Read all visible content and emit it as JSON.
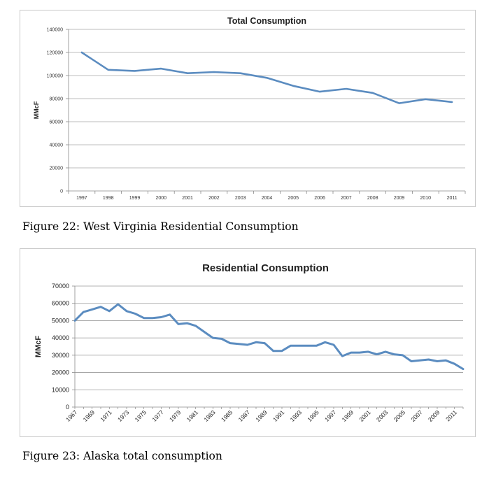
{
  "figures": [
    {
      "caption": "Figure 22: West Virginia Residential Consumption",
      "chart_data": {
        "type": "line",
        "title": "Total Consumption",
        "xlabel": "",
        "ylabel": "MMcF",
        "ylim": [
          0,
          140000
        ],
        "yticks": [
          "0",
          "20000",
          "40000",
          "60000",
          "80000",
          "100000",
          "120000",
          "140000"
        ],
        "categories": [
          "1997",
          "1998",
          "1999",
          "2000",
          "2001",
          "2002",
          "2003",
          "2004",
          "2005",
          "2006",
          "2007",
          "2008",
          "2009",
          "2010",
          "2011"
        ],
        "series": [
          {
            "values": [
              120000,
              105000,
              104000,
              106000,
              102000,
              103000,
              102000,
              98000,
              91000,
              86000,
              88500,
              85000,
              76000,
              79500,
              77000
            ]
          }
        ],
        "grid": true,
        "legend": "none",
        "line_color": "#5b8cc0"
      }
    },
    {
      "caption": "Figure 23: Alaska total consumption",
      "chart_data": {
        "type": "line",
        "title": "Residential Consumption",
        "xlabel": "",
        "ylabel": "MMcF",
        "ylim": [
          0,
          70000
        ],
        "yticks": [
          "0",
          "10000",
          "20000",
          "30000",
          "40000",
          "50000",
          "60000",
          "70000"
        ],
        "tick_labels": [
          "1967",
          "1969",
          "1971",
          "1973",
          "1975",
          "1977",
          "1979",
          "1981",
          "1983",
          "1985",
          "1987",
          "1989",
          "1991",
          "1993",
          "1995",
          "1997",
          "1999",
          "2001",
          "2003",
          "2005",
          "2007",
          "2009",
          "2011"
        ],
        "x": [
          1967,
          1968,
          1969,
          1970,
          1971,
          1972,
          1973,
          1974,
          1975,
          1976,
          1977,
          1978,
          1979,
          1980,
          1981,
          1982,
          1983,
          1984,
          1985,
          1986,
          1987,
          1988,
          1989,
          1990,
          1991,
          1992,
          1993,
          1994,
          1995,
          1996,
          1997,
          1998,
          1999,
          2000,
          2001,
          2002,
          2003,
          2004,
          2005,
          2006,
          2007,
          2008,
          2009,
          2010,
          2011,
          2012
        ],
        "series": [
          {
            "values": [
              50000,
              55000,
              56500,
              58000,
              55500,
              59500,
              55500,
              54000,
              51500,
              51500,
              52000,
              53500,
              48000,
              48500,
              47000,
              43500,
              40000,
              39500,
              37000,
              36500,
              36000,
              37500,
              37000,
              32500,
              32500,
              35500,
              35500,
              35500,
              35500,
              37500,
              36000,
              29500,
              31500,
              31500,
              32000,
              30500,
              32000,
              30500,
              30000,
              26500,
              27000,
              27500,
              26500,
              27000,
              25000,
              22000
            ]
          }
        ],
        "grid": true,
        "legend": "none",
        "line_color": "#5b8cc0"
      }
    }
  ]
}
